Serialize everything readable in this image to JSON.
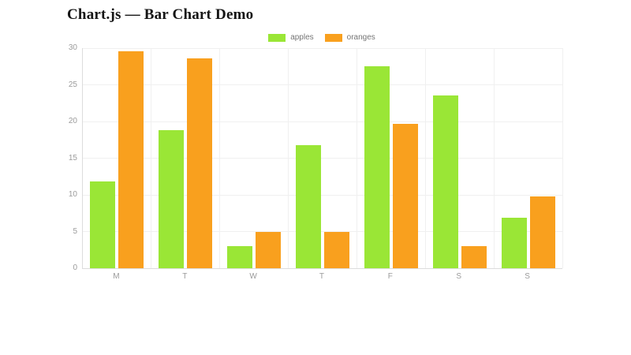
{
  "page": {
    "title": "Chart.js — Bar Chart Demo"
  },
  "chart_data": {
    "type": "bar",
    "title": "Chart.js — Bar Chart Demo",
    "categories": [
      "M",
      "T",
      "W",
      "T",
      "F",
      "S",
      "S"
    ],
    "series": [
      {
        "name": "apples",
        "color": "#9AE636",
        "values": [
          11.8,
          18.8,
          3.0,
          16.8,
          27.5,
          23.6,
          6.9
        ]
      },
      {
        "name": "oranges",
        "color": "#F9A01E",
        "values": [
          29.6,
          28.6,
          4.9,
          4.9,
          19.7,
          3.0,
          9.8
        ]
      }
    ],
    "xlabel": "",
    "ylabel": "",
    "ylim": [
      0,
      30
    ],
    "yticks": [
      0,
      5,
      10,
      15,
      20,
      25,
      30
    ],
    "grid": true,
    "legend_position": "top",
    "colors": {
      "grid": "#f0f0f0",
      "axis": "#dcdcdc",
      "tick_text": "#9b9b9b",
      "legend_text": "#757575",
      "title_text": "#151515",
      "background": "#ffffff"
    }
  }
}
